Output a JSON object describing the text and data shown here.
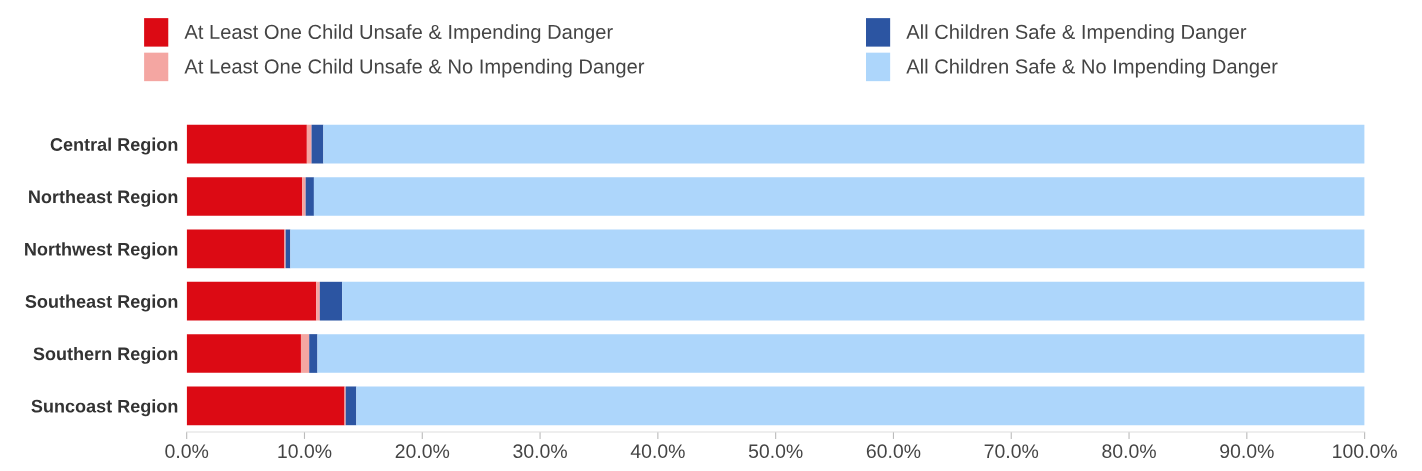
{
  "chart_data": {
    "type": "bar",
    "orientation": "horizontal",
    "stacked": true,
    "legend": "top",
    "categories": [
      "Central Region",
      "Northeast Region",
      "Northwest Region",
      "Southeast Region",
      "Southern Region",
      "Suncoast Region"
    ],
    "series": [
      {
        "name": "At Least One Child Unsafe & Impending Danger",
        "color": "#dc0a14",
        "values": [
          10.2,
          9.8,
          8.3,
          11.0,
          9.7,
          13.4
        ]
      },
      {
        "name": "At Least One Child Unsafe & No Impending Danger",
        "color": "#f4a6a2",
        "values": [
          0.4,
          0.3,
          0.1,
          0.3,
          0.7,
          0.1
        ]
      },
      {
        "name": "All Children Safe & Impending Danger",
        "color": "#2c55a2",
        "values": [
          1.0,
          0.7,
          0.4,
          1.9,
          0.7,
          0.9
        ]
      },
      {
        "name": "All Children Safe & No Impending Danger",
        "color": "#add6fb",
        "values": [
          88.4,
          89.2,
          91.2,
          86.8,
          88.9,
          85.6
        ]
      }
    ],
    "xlim": [
      0,
      100
    ],
    "xticks": [
      {
        "value": 0,
        "label": "0.0%"
      },
      {
        "value": 10,
        "label": "10.0%"
      },
      {
        "value": 20,
        "label": "20.0%"
      },
      {
        "value": 30,
        "label": "30.0%"
      },
      {
        "value": 40,
        "label": "40.0%"
      },
      {
        "value": 50,
        "label": "50.0%"
      },
      {
        "value": 60,
        "label": "60.0%"
      },
      {
        "value": 70,
        "label": "70.0%"
      },
      {
        "value": 80,
        "label": "80.0%"
      },
      {
        "value": 90,
        "label": "90.0%"
      },
      {
        "value": 100,
        "label": "100.0%"
      }
    ],
    "grid": false
  }
}
